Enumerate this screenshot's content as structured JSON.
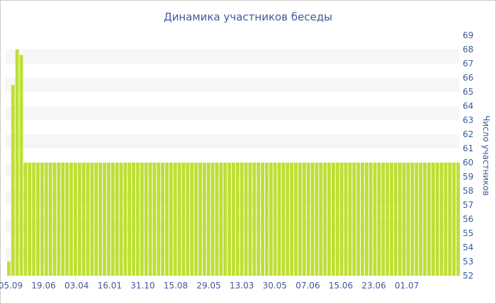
{
  "chart_data": {
    "type": "bar",
    "title": "Динамика участников беседы",
    "xlabel": "",
    "ylabel": "Число участников",
    "ylim": [
      52,
      69
    ],
    "yticks": [
      52,
      53,
      54,
      55,
      56,
      57,
      58,
      59,
      60,
      61,
      62,
      63,
      64,
      65,
      66,
      67,
      68,
      69
    ],
    "xtick_labels": [
      "05.09",
      "19.06",
      "03.04",
      "16.01",
      "31.10",
      "15.08",
      "29.05",
      "13.03",
      "30.05",
      "07.06",
      "15.06",
      "23.06",
      "01.07"
    ],
    "grid": "horizontal bands",
    "bar_color": "#bde033",
    "values": [
      53,
      65.5,
      68,
      67.6,
      60,
      60,
      60,
      60,
      60,
      60,
      60,
      60,
      60,
      60,
      60,
      60,
      60,
      60,
      60,
      60,
      60,
      60,
      60,
      60,
      60,
      60,
      60,
      60,
      60,
      60,
      60,
      60,
      60,
      60,
      60,
      60,
      60,
      60,
      60,
      60,
      60,
      60,
      60,
      60,
      60,
      60,
      60,
      60,
      60,
      60,
      60,
      60,
      60,
      60,
      60,
      60,
      60,
      60,
      60,
      60,
      60,
      60,
      60,
      60,
      60,
      60,
      60,
      60,
      60,
      60,
      60,
      60,
      60,
      60,
      60,
      60,
      60,
      60,
      60,
      60,
      60,
      60,
      60,
      60,
      60,
      60,
      60,
      60,
      60,
      60,
      60,
      60,
      60,
      60,
      60,
      60,
      60,
      60,
      60,
      60,
      60,
      60,
      60,
      60,
      60,
      60,
      60,
      60,
      60
    ]
  }
}
